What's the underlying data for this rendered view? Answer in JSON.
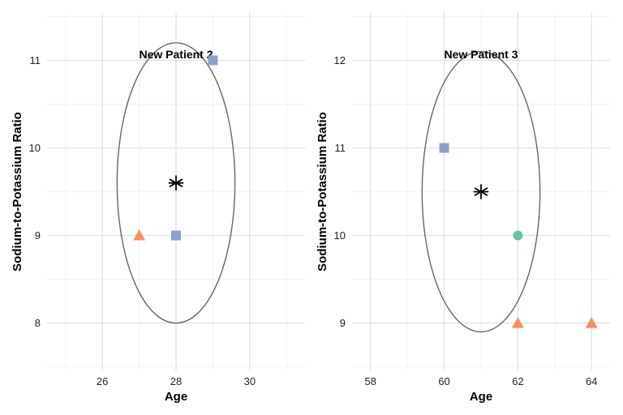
{
  "chart_data": [
    {
      "type": "scatter",
      "title": "New Patient 2",
      "xlabel": "Age",
      "ylabel": "Sodium-to-Potassium Ratio",
      "xlim": [
        24.5,
        31.5
      ],
      "ylim": [
        7.45,
        11.55
      ],
      "xticks": [
        26,
        28,
        30
      ],
      "xtick_labels": [
        "26",
        "28",
        "30"
      ],
      "yticks": [
        8,
        9,
        10,
        11
      ],
      "ytick_labels": [
        "8",
        "9",
        "10",
        "11"
      ],
      "grid": true,
      "new_patient": {
        "x": 28,
        "y": 9.6,
        "marker": "asterisk"
      },
      "neighborhood_circle": {
        "center": [
          28,
          9.6
        ],
        "radius": 1.6
      },
      "points": [
        {
          "x": 29,
          "y": 11,
          "shape": "square",
          "color": "#8da0cb"
        },
        {
          "x": 28,
          "y": 9,
          "shape": "square",
          "color": "#8da0cb"
        },
        {
          "x": 27,
          "y": 9,
          "shape": "triangle",
          "color": "#fc8d62"
        }
      ]
    },
    {
      "type": "scatter",
      "title": "New Patient 3",
      "xlabel": "Age",
      "ylabel": "Sodium-to-Potassium Ratio",
      "xlim": [
        57.5,
        64.5
      ],
      "ylim": [
        8.45,
        12.55
      ],
      "xticks": [
        58,
        60,
        62,
        64
      ],
      "xtick_labels": [
        "58",
        "60",
        "62",
        "64"
      ],
      "yticks": [
        9,
        10,
        11,
        12
      ],
      "ytick_labels": [
        "9",
        "10",
        "11",
        "12"
      ],
      "grid": true,
      "new_patient": {
        "x": 61,
        "y": 10.5,
        "marker": "asterisk"
      },
      "neighborhood_circle": {
        "center": [
          61,
          10.5
        ],
        "radius": 1.6
      },
      "points": [
        {
          "x": 60,
          "y": 11,
          "shape": "square",
          "color": "#8da0cb"
        },
        {
          "x": 62,
          "y": 10,
          "shape": "circle",
          "color": "#66c2a5"
        },
        {
          "x": 62,
          "y": 9,
          "shape": "triangle",
          "color": "#fc8d62"
        },
        {
          "x": 64,
          "y": 9,
          "shape": "triangle",
          "color": "#fc8d62"
        }
      ]
    }
  ]
}
